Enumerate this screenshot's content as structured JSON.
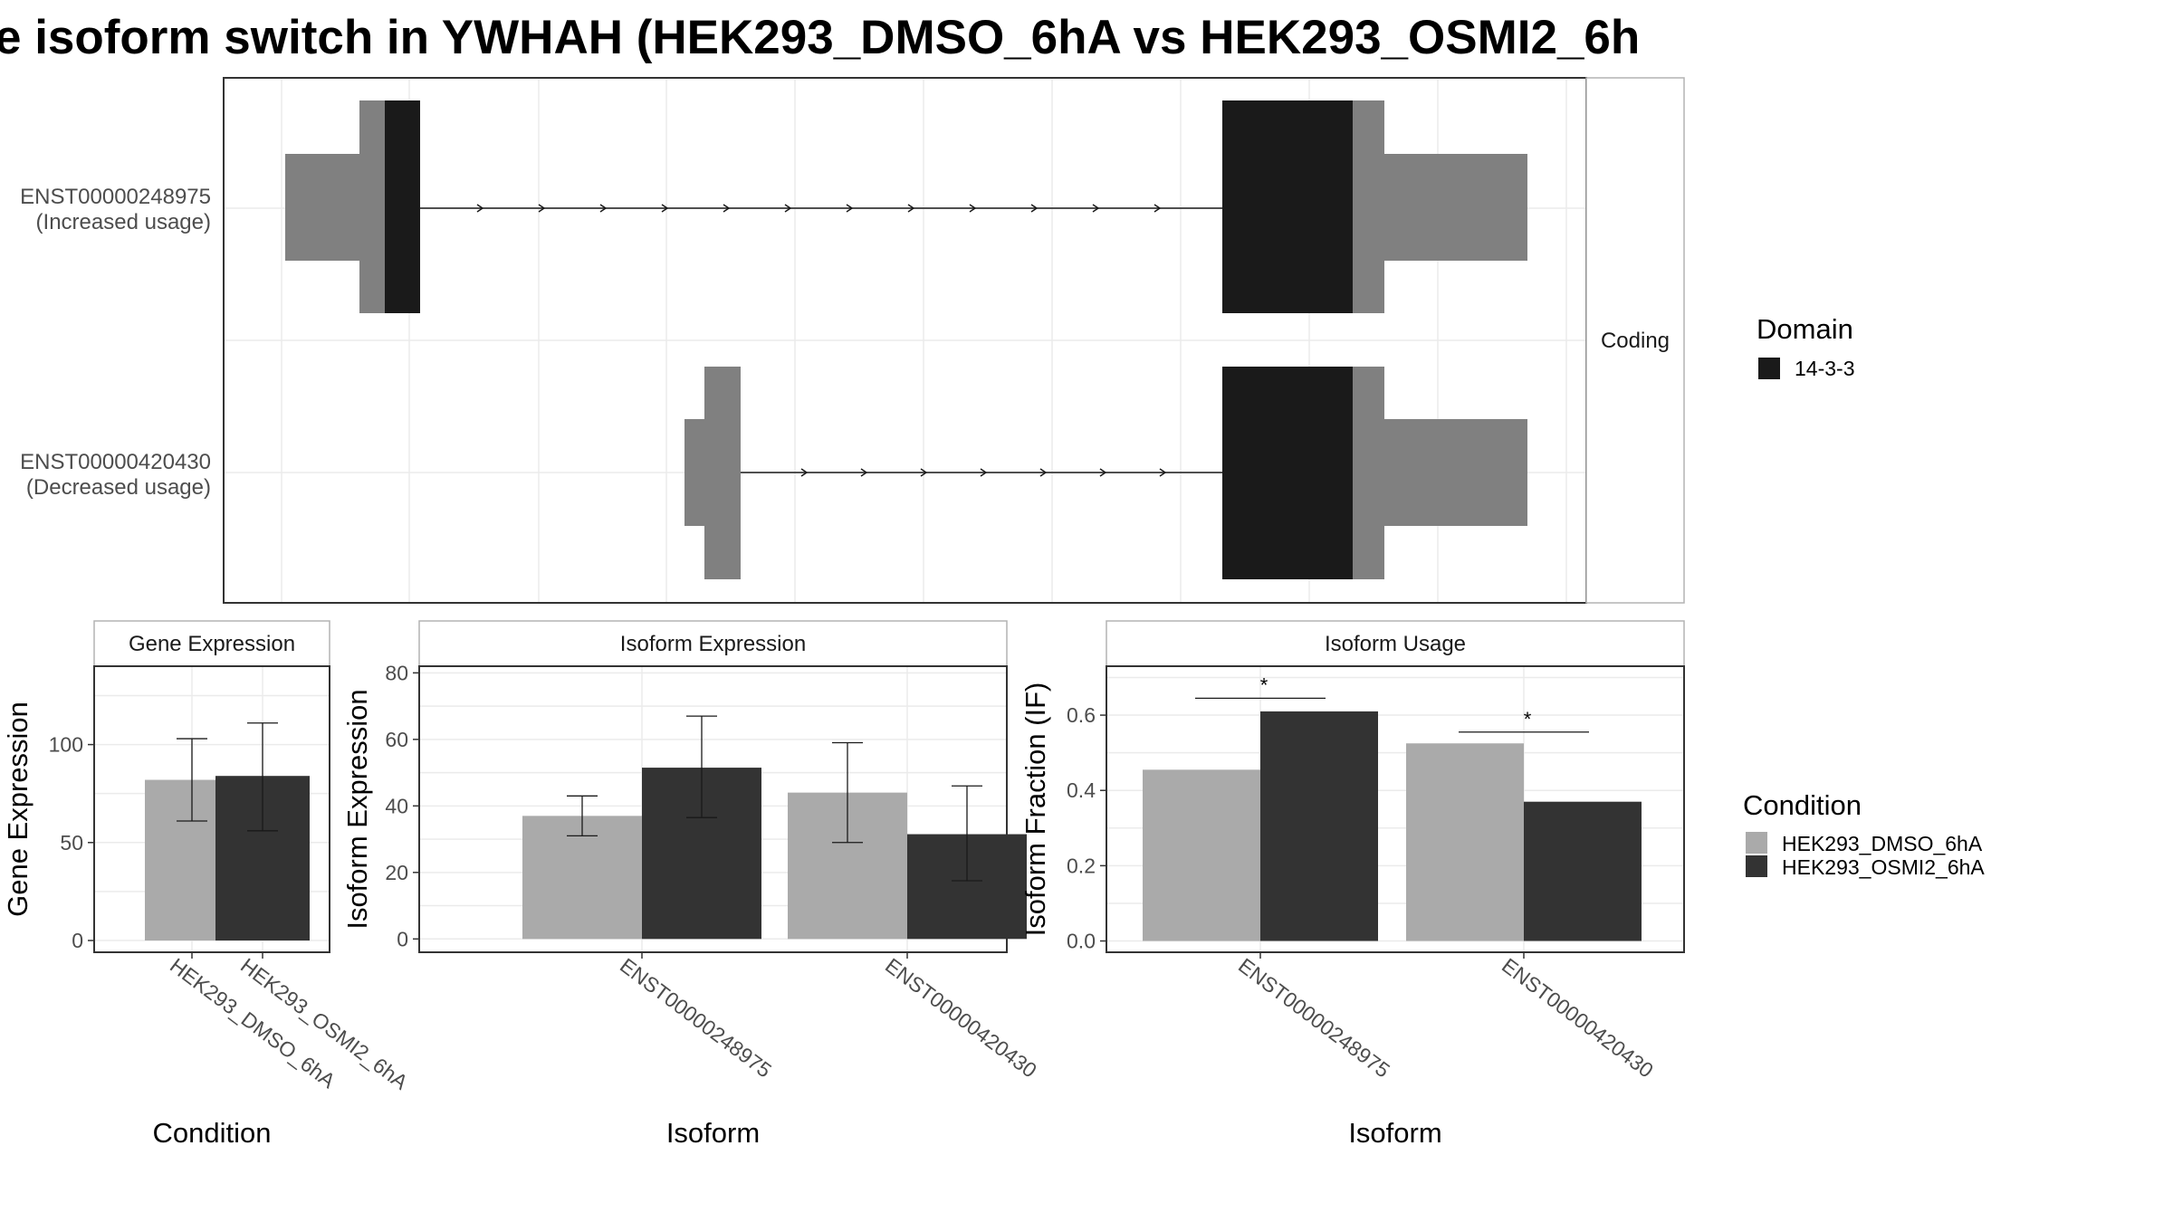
{
  "title": "e isoform switch in YWHAH (HEK293_DMSO_6hA vs HEK293_OSMI2_6h",
  "colors": {
    "exon": "#808080",
    "domain": "#1a1a1a",
    "dmso": "#aaaaaa",
    "osmi": "#333333",
    "panel_border": "#333333",
    "strip_border": "#b3b3b3",
    "grid": "#ebebeb"
  },
  "structure_panel": {
    "strip_label": "Coding",
    "isoforms": [
      {
        "id": "ENST00000248975",
        "usage": "(Increased usage)"
      },
      {
        "id": "ENST00000420430",
        "usage": "(Decreased usage)"
      }
    ]
  },
  "domain_legend": {
    "title": "Domain",
    "items": [
      {
        "label": "14-3-3",
        "color": "#1a1a1a"
      }
    ]
  },
  "condition_legend": {
    "title": "Condition",
    "items": [
      {
        "label": "HEK293_DMSO_6hA",
        "color": "#aaaaaa"
      },
      {
        "label": "HEK293_OSMI2_6hA",
        "color": "#333333"
      }
    ]
  },
  "chart_data": [
    {
      "type": "bar",
      "title": "Gene Expression",
      "xlabel": "Condition",
      "ylabel": "Gene Expression",
      "categories": [
        "HEK293_DMSO_6hA",
        "HEK293_OSMI2_6hA"
      ],
      "values": [
        82,
        84
      ],
      "error_low": [
        61,
        56
      ],
      "error_high": [
        103,
        111
      ],
      "ylim": [
        -6,
        140
      ],
      "yticks": [
        0,
        50,
        100
      ]
    },
    {
      "type": "bar",
      "title": "Isoform Expression",
      "xlabel": "Isoform",
      "ylabel": "Isoform Expression",
      "categories": [
        "ENST00000248975",
        "ENST00000420430"
      ],
      "series": [
        {
          "values": [
            37,
            44
          ],
          "error_low": [
            31,
            29
          ],
          "error_high": [
            43,
            59
          ]
        },
        {
          "values": [
            51.5,
            31.5
          ],
          "error_low": [
            36.5,
            17.5
          ],
          "error_high": [
            67,
            46
          ]
        }
      ],
      "ylim": [
        -4,
        82
      ],
      "yticks": [
        0,
        20,
        40,
        60,
        80
      ]
    },
    {
      "type": "bar",
      "title": "Isoform Usage",
      "xlabel": "Isoform",
      "ylabel": "Isoform Fraction (IF)",
      "categories": [
        "ENST00000248975",
        "ENST00000420430"
      ],
      "series": [
        {
          "values": [
            0.455,
            0.525
          ]
        },
        {
          "values": [
            0.61,
            0.37
          ]
        }
      ],
      "significance": [
        {
          "label": "*",
          "y": 0.645
        },
        {
          "label": "*",
          "y": 0.555
        }
      ],
      "ylim": [
        -0.03,
        0.73
      ],
      "yticks": [
        "0.0",
        "0.2",
        "0.4",
        "0.6"
      ]
    }
  ]
}
